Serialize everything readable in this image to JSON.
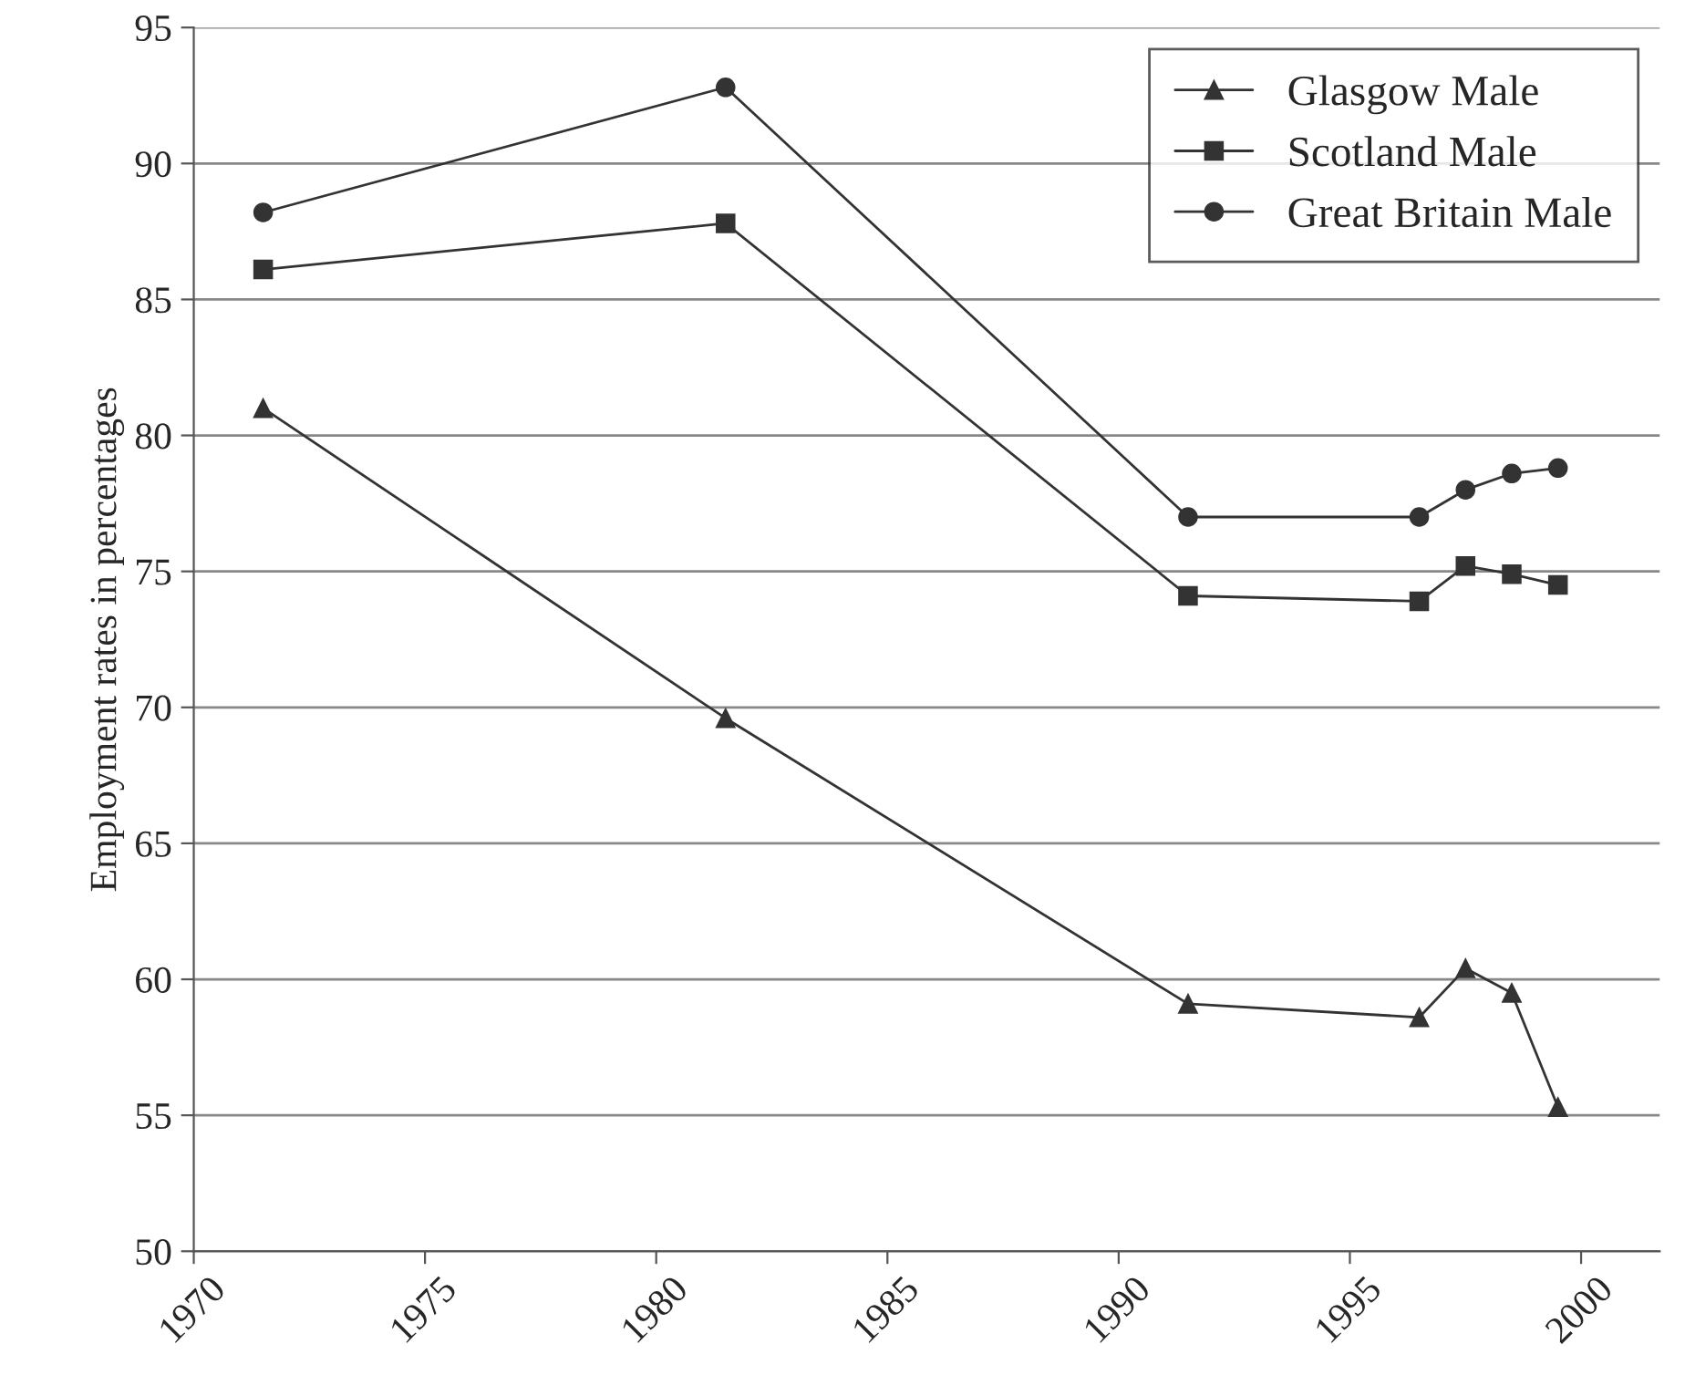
{
  "chart_data": {
    "type": "line",
    "ylabel": "Employment rates in percentages",
    "x": [
      1971.5,
      1981.5,
      1991.5,
      1996.5,
      1997.5,
      1998.5,
      1999.5
    ],
    "series": [
      {
        "name": "Glasgow Male",
        "color": "#333333",
        "marker": "triangle",
        "values": [
          81.0,
          69.6,
          59.1,
          58.6,
          60.4,
          59.5,
          55.3
        ]
      },
      {
        "name": "Scotland Male",
        "color": "#333333",
        "marker": "square",
        "values": [
          86.1,
          87.8,
          74.1,
          73.9,
          75.2,
          74.9,
          74.5
        ]
      },
      {
        "name": "Great Britain Male",
        "color": "#333333",
        "marker": "circle",
        "values": [
          88.2,
          92.8,
          77.0,
          77.0,
          78.0,
          78.6,
          78.8
        ]
      }
    ],
    "xlim": [
      1970,
      2001.7
    ],
    "xticks": [
      1970,
      1975,
      1980,
      1985,
      1990,
      1995,
      2000
    ],
    "ylim": [
      50,
      95
    ],
    "yticks": [
      50,
      55,
      60,
      65,
      70,
      75,
      80,
      85,
      90,
      95
    ],
    "grid": "y",
    "legend": "top right",
    "line_style": "solid"
  }
}
